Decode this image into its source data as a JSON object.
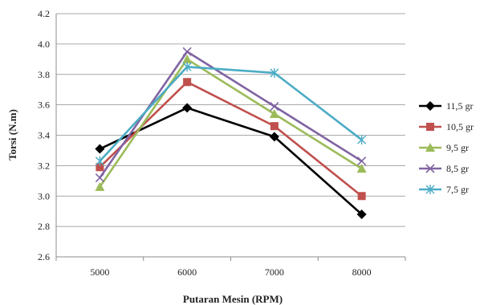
{
  "chart_data": {
    "type": "line",
    "title": "",
    "xlabel": "Putaran Mesin (RPM)",
    "ylabel": "Torsi (N.m)",
    "categories": [
      "5000",
      "6000",
      "7000",
      "8000"
    ],
    "ylim": [
      2.6,
      4.2
    ],
    "yticks": [
      "2.6",
      "2.8",
      "3.0",
      "3.2",
      "3.4",
      "3.6",
      "3.8",
      "4.0",
      "4.2"
    ],
    "grid": true,
    "legend_position": "right",
    "series": [
      {
        "name": "11,5 gr",
        "values": [
          3.31,
          3.58,
          3.39,
          2.88
        ],
        "color": "#000000",
        "marker": "diamond"
      },
      {
        "name": "10,5 gr",
        "values": [
          3.19,
          3.75,
          3.46,
          3.0
        ],
        "color": "#c0504d",
        "marker": "square"
      },
      {
        "name": "9,5 gr",
        "values": [
          3.06,
          3.9,
          3.54,
          3.18
        ],
        "color": "#9bbb59",
        "marker": "triangle"
      },
      {
        "name": "8,5 gr",
        "values": [
          3.12,
          3.95,
          3.59,
          3.23
        ],
        "color": "#8064a2",
        "marker": "x"
      },
      {
        "name": "7,5 gr",
        "values": [
          3.23,
          3.85,
          3.81,
          3.37
        ],
        "color": "#4bacc6",
        "marker": "star"
      }
    ]
  }
}
